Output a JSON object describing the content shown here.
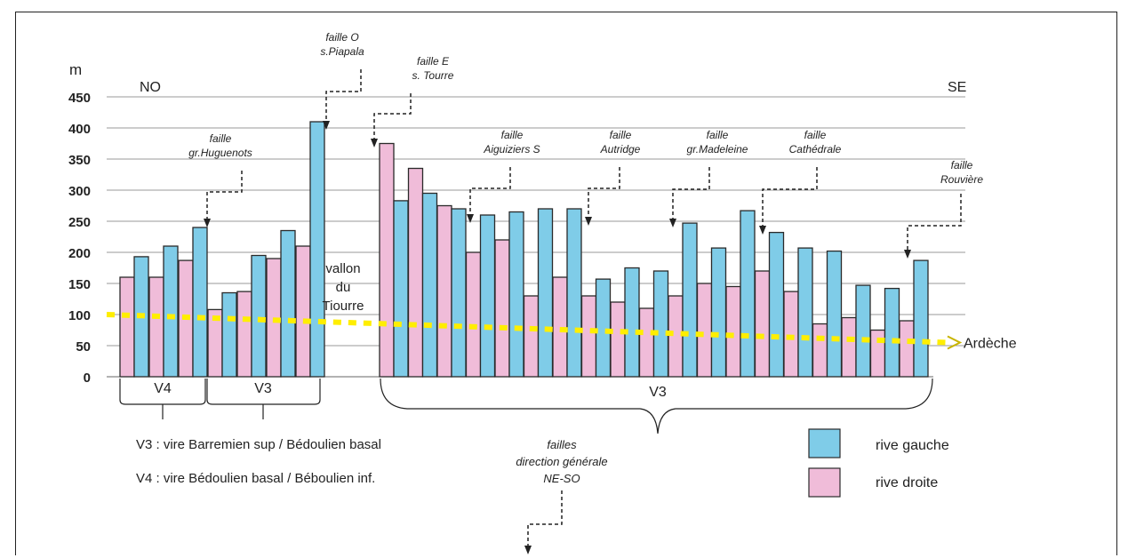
{
  "colors": {
    "rive_gauche": "#7fcce8",
    "rive_droite": "#f0bcd9",
    "ardeche_line": "#ffee00",
    "bar_stroke": "#2a2a2a"
  },
  "labels": {
    "unit": "m",
    "no": "NO",
    "se": "SE",
    "vallon": [
      "vallon",
      "du",
      "Tiourre"
    ],
    "ardeche": "Ardèche",
    "groups": [
      "V4",
      "V3",
      "V3"
    ],
    "v3_desc": "V3 : vire Barremien sup / Bédoulien basal",
    "v4_desc": "V4 : vire Bédoulien basal / Béboulien inf.",
    "failles_dir": [
      "failles",
      "direction générale",
      "NE-SO"
    ]
  },
  "faults": [
    {
      "lines": [
        "faille O",
        "s.Piapala"
      ]
    },
    {
      "lines": [
        "faille E",
        "s. Tourre"
      ]
    },
    {
      "lines": [
        "faille",
        "gr.Huguenots"
      ]
    },
    {
      "lines": [
        "faille",
        "Aiguiziers S"
      ]
    },
    {
      "lines": [
        "faille",
        "Autridge"
      ]
    },
    {
      "lines": [
        "faille",
        "gr.Madeleine"
      ]
    },
    {
      "lines": [
        "faille",
        "Cathédrale"
      ]
    },
    {
      "lines": [
        "faille",
        "Rouvière"
      ]
    }
  ],
  "chart_data": {
    "type": "bar",
    "ylabel": "m",
    "ylim": [
      0,
      450
    ],
    "yticks": [
      0,
      50,
      100,
      150,
      200,
      250,
      300,
      350,
      400,
      450
    ],
    "legend": {
      "placement": "bottom-right",
      "entries": [
        "rive gauche",
        "rive droite"
      ]
    },
    "series": [
      {
        "name": "rive droite",
        "values": [
          160,
          160,
          187,
          108,
          137,
          190,
          210,
          375,
          335,
          275,
          200,
          220,
          130,
          160,
          130,
          120,
          110,
          130,
          150,
          145,
          170,
          137,
          85,
          95,
          75,
          90
        ]
      },
      {
        "name": "rive gauche",
        "values": [
          193,
          210,
          240,
          135,
          195,
          235,
          410,
          283,
          295,
          270,
          260,
          265,
          270,
          270,
          157,
          175,
          170,
          247,
          207,
          267,
          232,
          207,
          202,
          147,
          142,
          187
        ]
      }
    ],
    "ardeche_level": {
      "start": 100,
      "end": 55
    }
  }
}
